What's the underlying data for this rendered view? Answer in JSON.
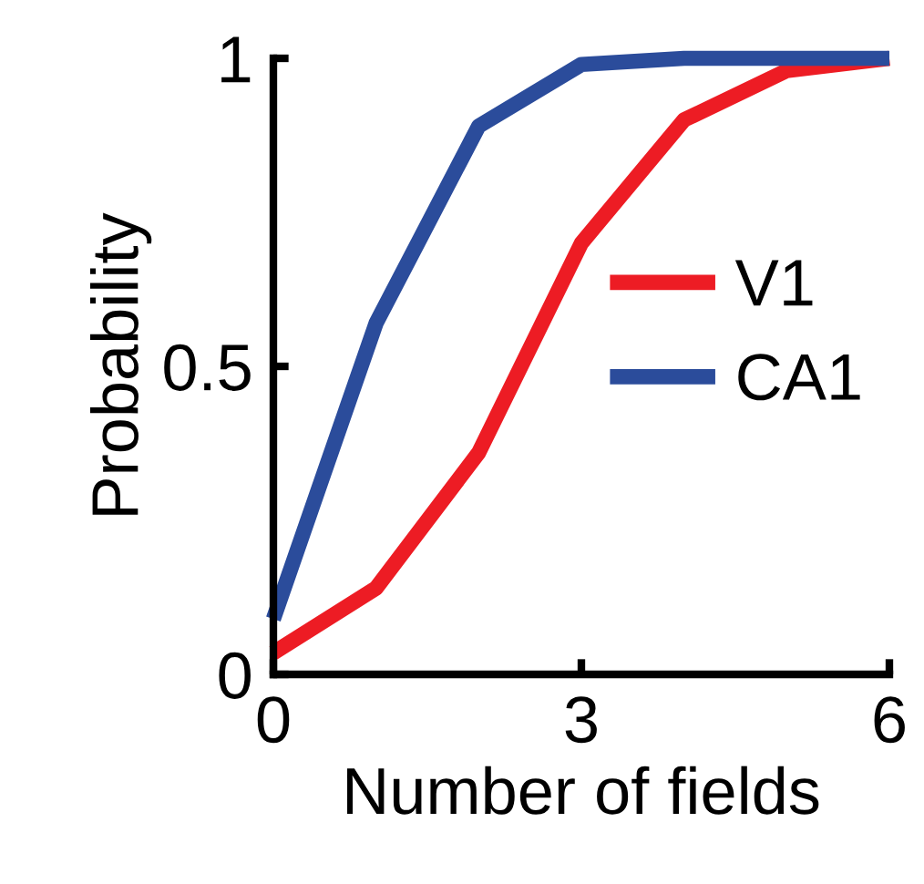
{
  "chart_data": {
    "type": "line",
    "xlabel": "Number of fields",
    "ylabel": "Probability",
    "x": [
      0,
      1,
      2,
      3,
      4,
      5,
      6
    ],
    "series": [
      {
        "name": "V1",
        "color": "#ed1c24",
        "values": [
          0.035,
          0.14,
          0.36,
          0.7,
          0.9,
          0.98,
          1.0
        ]
      },
      {
        "name": "CA1",
        "color": "#2b4c9b",
        "values": [
          0.09,
          0.57,
          0.89,
          0.99,
          1.0,
          1.0,
          1.0
        ]
      }
    ],
    "xlim": [
      0,
      6
    ],
    "xticks": [
      0,
      3,
      6
    ],
    "ylim": [
      0,
      1
    ],
    "yticks": [
      0,
      {
        "value": 0.5,
        "label": "0.5"
      },
      1
    ],
    "grid": false,
    "legend": "right",
    "marker": "none",
    "line_style": "solid"
  }
}
